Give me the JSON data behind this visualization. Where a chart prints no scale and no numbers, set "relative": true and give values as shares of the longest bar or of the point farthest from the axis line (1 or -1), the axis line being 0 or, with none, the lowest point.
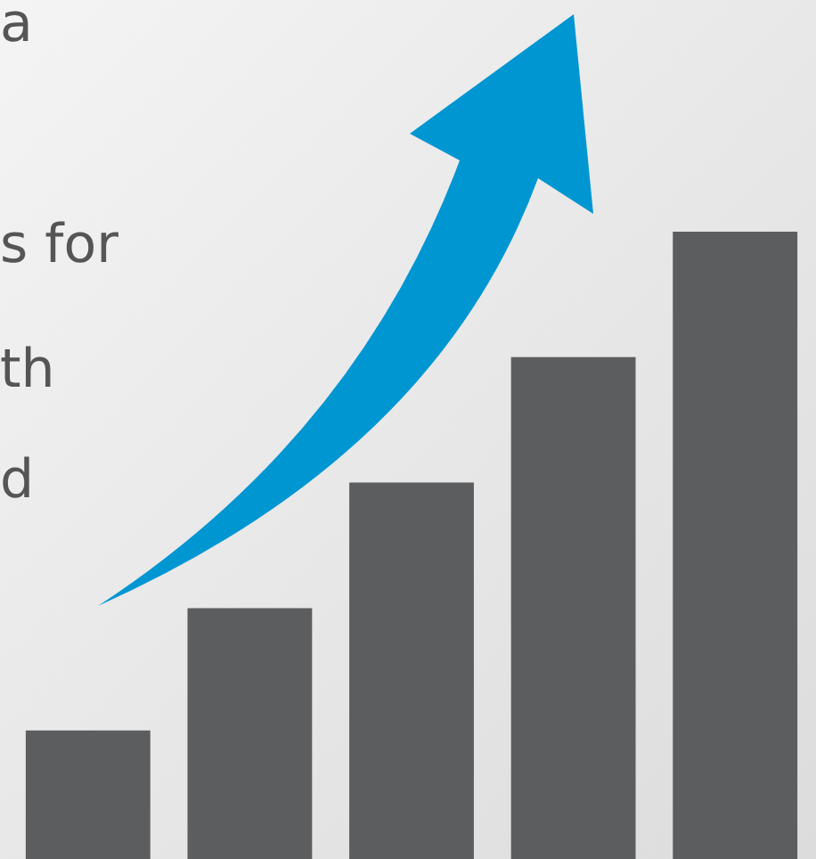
{
  "chart_data": {
    "type": "bar",
    "relative": true,
    "categories": [
      null,
      null,
      null,
      null,
      null
    ],
    "values": [
      0.205,
      0.4,
      0.6,
      0.8,
      1
    ],
    "color": "#5c5d5f",
    "annotations": [
      "a",
      "s for",
      "th",
      "d"
    ]
  }
}
